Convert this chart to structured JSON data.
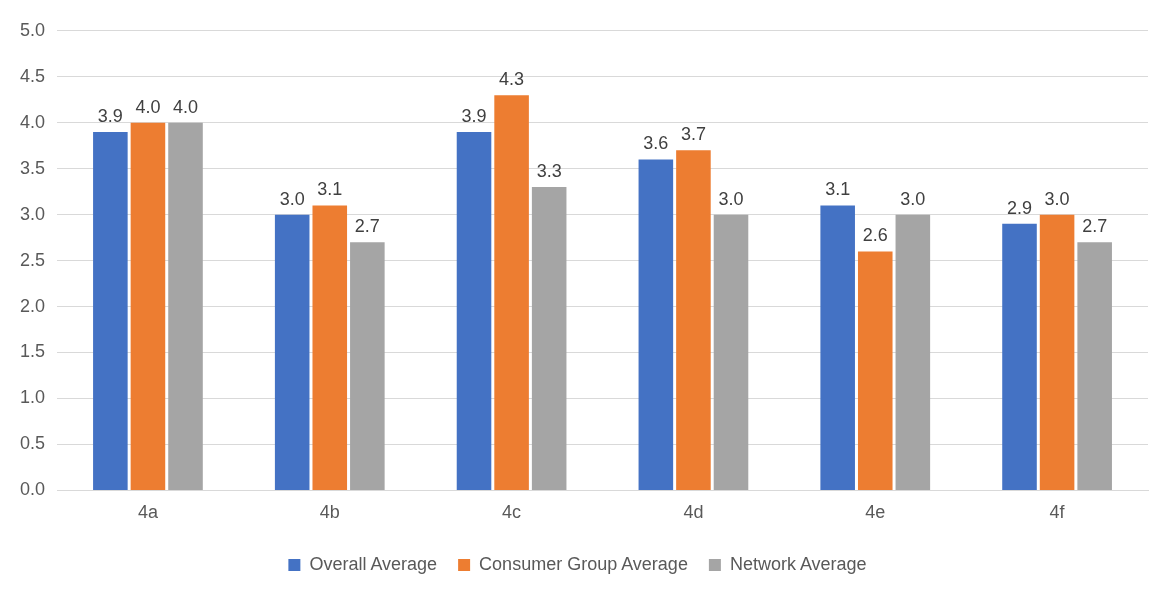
{
  "chart_data": {
    "type": "bar",
    "categories": [
      "4a",
      "4b",
      "4c",
      "4d",
      "4e",
      "4f"
    ],
    "series": [
      {
        "name": "Overall Average",
        "color": "#4472c4",
        "values": [
          3.9,
          3.0,
          3.9,
          3.6,
          3.1,
          2.9
        ],
        "value_labels": [
          "3.9",
          "3.0",
          "3.9",
          "3.6",
          "3.1",
          "2.9"
        ]
      },
      {
        "name": "Consumer Group Average",
        "color": "#ed7d31",
        "values": [
          4.0,
          3.1,
          4.3,
          3.7,
          2.6,
          3.0
        ],
        "value_labels": [
          "4.0",
          "3.1",
          "4.3",
          "3.7",
          "2.6",
          "3.0"
        ]
      },
      {
        "name": "Network Average",
        "color": "#a5a5a5",
        "values": [
          4.0,
          2.7,
          3.3,
          3.0,
          3.0,
          2.7
        ],
        "value_labels": [
          "4.0",
          "2.7",
          "3.3",
          "3.0",
          "3.0",
          "2.7"
        ]
      }
    ],
    "ylim": [
      0,
      5
    ],
    "yticks": [
      {
        "value": 0,
        "label": "0.0"
      },
      {
        "value": 0.5,
        "label": "0.5"
      },
      {
        "value": 1,
        "label": "1.0"
      },
      {
        "value": 1.5,
        "label": "1.5"
      },
      {
        "value": 2,
        "label": "2.0"
      },
      {
        "value": 2.5,
        "label": "2.5"
      },
      {
        "value": 3,
        "label": "3.0"
      },
      {
        "value": 3.5,
        "label": "3.5"
      },
      {
        "value": 4,
        "label": "4.0"
      },
      {
        "value": 4.5,
        "label": "4.5"
      },
      {
        "value": 5,
        "label": "5.0"
      }
    ],
    "grid": "y",
    "legend": "bottom"
  }
}
